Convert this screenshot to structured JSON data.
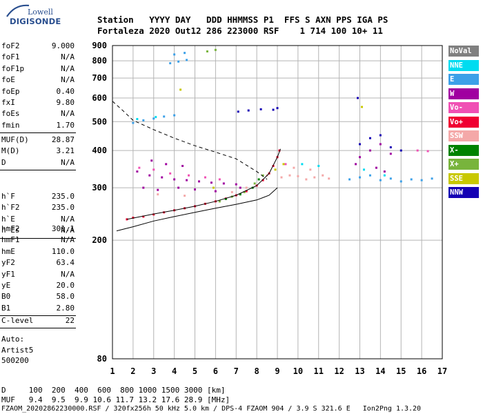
{
  "logo": {
    "line1": "Lowell",
    "line2": "DIGISONDE",
    "icon": "antenna-arc-icon"
  },
  "header": {
    "labels_line": "Station   YYYY DAY   DDD HHMMSS P1  FFS S AXN PPS IGA PS",
    "values_line": "Fortaleza 2020 Out12 286 223000 RSF    1 714 100 10+ 11"
  },
  "params": {
    "group1": [
      {
        "label": "foF2",
        "value": "9.000"
      },
      {
        "label": "foF1",
        "value": "N/A"
      },
      {
        "label": "foF1p",
        "value": "N/A"
      },
      {
        "label": "foE",
        "value": "N/A"
      },
      {
        "label": "foEp",
        "value": "0.40"
      },
      {
        "label": "fxI",
        "value": "9.80"
      },
      {
        "label": "foEs",
        "value": "N/A"
      },
      {
        "label": "fmin",
        "value": "1.70"
      }
    ],
    "group2": [
      {
        "label": "MUF(D)",
        "value": "28.87"
      },
      {
        "label": "M(D)",
        "value": "3.21"
      },
      {
        "label": "D",
        "value": "N/A"
      }
    ],
    "group3": [
      {
        "label": "h`F",
        "value": "235.0"
      },
      {
        "label": "h`F2",
        "value": "235.0"
      },
      {
        "label": "h`E",
        "value": "N/A"
      },
      {
        "label": "h`Es",
        "value": "N/A"
      }
    ],
    "group4": [
      {
        "label": "hmF2",
        "value": "301.1"
      },
      {
        "label": "hmF1",
        "value": "N/A"
      },
      {
        "label": "hmE",
        "value": "110.0"
      },
      {
        "label": "yF2",
        "value": "63.4"
      },
      {
        "label": "yF1",
        "value": "N/A"
      },
      {
        "label": "yE",
        "value": "20.0"
      },
      {
        "label": "B0",
        "value": "58.0"
      },
      {
        "label": "B1",
        "value": "2.80"
      }
    ],
    "group5": [
      {
        "label": "C-level",
        "value": "22"
      }
    ]
  },
  "auto": {
    "line1": "Auto:",
    "line2": "Artist5",
    "line3": "500200"
  },
  "footer": {
    "d_row": "D     100  200  400  600  800 1000 1500 3000 [km]",
    "muf_row": "MUF   9.4  9.5  9.9 10.6 11.7 13.2 17.6 28.9 [MHz]",
    "file_row": "FZAOM_20202862230000.RSF / 320fx256h 50 kHz 5.0 km / DPS-4 FZAOM 904 / 3.9 S 321.6 E   Ion2Png 1.3.20"
  },
  "legend": [
    {
      "label": "NoVal",
      "color": "#808080"
    },
    {
      "label": "NNE",
      "color": "#00dcf0"
    },
    {
      "label": "E",
      "color": "#3ca0e8"
    },
    {
      "label": "W",
      "color": "#a000a0"
    },
    {
      "label": "Vo-",
      "color": "#f050b4"
    },
    {
      "label": "Vo+",
      "color": "#f00032"
    },
    {
      "label": "SSW",
      "color": "#f4a8a8"
    },
    {
      "label": "X-",
      "color": "#008200"
    },
    {
      "label": "X+",
      "color": "#78b43c"
    },
    {
      "label": "SSE",
      "color": "#c8c800"
    },
    {
      "label": "NNW",
      "color": "#1400b4"
    }
  ],
  "chart_data": {
    "type": "scatter",
    "title": "",
    "xlabel": "",
    "ylabel": "",
    "xlim": [
      1,
      17
    ],
    "ylim": [
      80,
      900
    ],
    "y_scale": "log",
    "x_ticks": [
      1,
      2,
      3,
      4,
      5,
      6,
      7,
      8,
      9,
      10,
      11,
      12,
      13,
      14,
      15,
      16,
      17
    ],
    "y_ticks": [
      80,
      200,
      300,
      400,
      500,
      600,
      700,
      800,
      900
    ],
    "grid": true,
    "legend_position": "right",
    "series": [
      {
        "name": "Vo+",
        "color": "#f00032",
        "points": [
          [
            1.7,
            235
          ],
          [
            2,
            238
          ],
          [
            2.5,
            240
          ],
          [
            3,
            244
          ],
          [
            3.5,
            248
          ],
          [
            4,
            252
          ],
          [
            4.5,
            256
          ],
          [
            5,
            260
          ],
          [
            5.5,
            265
          ],
          [
            6,
            270
          ],
          [
            6.5,
            276
          ],
          [
            7,
            283
          ],
          [
            7.5,
            292
          ],
          [
            8,
            305
          ],
          [
            8.3,
            318
          ],
          [
            8.6,
            335
          ],
          [
            8.8,
            355
          ],
          [
            9.0,
            380
          ],
          [
            9.1,
            400
          ]
        ]
      },
      {
        "name": "W",
        "color": "#a000a0",
        "points": [
          [
            2.2,
            340
          ],
          [
            2.8,
            330
          ],
          [
            3.4,
            325
          ],
          [
            4,
            320
          ],
          [
            4.6,
            318
          ],
          [
            5.2,
            315
          ],
          [
            5.8,
            312
          ],
          [
            6.4,
            310
          ],
          [
            7,
            308
          ],
          [
            2.5,
            300
          ],
          [
            3.2,
            295
          ],
          [
            4.2,
            300
          ],
          [
            5,
            296
          ],
          [
            6,
            292
          ],
          [
            7.2,
            300
          ],
          [
            13,
            380
          ],
          [
            13.5,
            400
          ],
          [
            14,
            420
          ],
          [
            14.5,
            390
          ],
          [
            12.8,
            360
          ],
          [
            13.8,
            350
          ],
          [
            14.2,
            340
          ],
          [
            2.9,
            370
          ],
          [
            3.6,
            360
          ],
          [
            4.4,
            355
          ]
        ]
      },
      {
        "name": "SSW",
        "color": "#f4a8a8",
        "points": [
          [
            8.5,
            330
          ],
          [
            9.2,
            325
          ],
          [
            9.6,
            330
          ],
          [
            10,
            328
          ],
          [
            10.4,
            320
          ],
          [
            10.8,
            325
          ],
          [
            11.2,
            330
          ],
          [
            11.5,
            322
          ],
          [
            7.5,
            300
          ],
          [
            6.8,
            290
          ],
          [
            3.2,
            285
          ],
          [
            4.5,
            282
          ],
          [
            9.8,
            350
          ],
          [
            10.6,
            345
          ]
        ]
      },
      {
        "name": "E",
        "color": "#3ca0e8",
        "points": [
          [
            2,
            495
          ],
          [
            2.5,
            505
          ],
          [
            3,
            512
          ],
          [
            3.5,
            520
          ],
          [
            4,
            525
          ],
          [
            3.8,
            785
          ],
          [
            4.2,
            795
          ],
          [
            4.6,
            805
          ],
          [
            4.0,
            840
          ],
          [
            4.5,
            850
          ],
          [
            12.5,
            320
          ],
          [
            13,
            325
          ],
          [
            13.5,
            330
          ],
          [
            14,
            318
          ],
          [
            14.5,
            322
          ],
          [
            15,
            315
          ],
          [
            15.5,
            320
          ],
          [
            16,
            318
          ],
          [
            16.5,
            322
          ]
        ]
      },
      {
        "name": "NNE",
        "color": "#00dcf0",
        "points": [
          [
            2.2,
            510
          ],
          [
            3.1,
            518
          ],
          [
            10.2,
            360
          ],
          [
            11,
            355
          ],
          [
            13.2,
            345
          ],
          [
            14.2,
            330
          ]
        ]
      },
      {
        "name": "NNW",
        "color": "#1400b4",
        "points": [
          [
            7.1,
            540
          ],
          [
            7.6,
            545
          ],
          [
            8.2,
            550
          ],
          [
            8.8,
            548
          ],
          [
            9.0,
            555
          ],
          [
            13,
            420
          ],
          [
            13.5,
            440
          ],
          [
            14,
            450
          ],
          [
            14.5,
            410
          ],
          [
            15,
            400
          ],
          [
            12.9,
            600
          ]
        ]
      },
      {
        "name": "X+",
        "color": "#78b43c",
        "points": [
          [
            6.2,
            270
          ],
          [
            6.8,
            280
          ],
          [
            7.4,
            290
          ],
          [
            7.9,
            310
          ],
          [
            8.3,
            330
          ],
          [
            5.6,
            860
          ],
          [
            6.0,
            870
          ]
        ]
      },
      {
        "name": "X-",
        "color": "#008200",
        "points": [
          [
            6.5,
            275
          ],
          [
            7.2,
            285
          ],
          [
            7.8,
            300
          ],
          [
            8.1,
            320
          ]
        ]
      },
      {
        "name": "SSE",
        "color": "#c8c800",
        "points": [
          [
            8.9,
            345
          ],
          [
            9.3,
            360
          ],
          [
            5.9,
            300
          ],
          [
            13.1,
            560
          ],
          [
            4.3,
            640
          ]
        ]
      },
      {
        "name": "Vo-",
        "color": "#f050b4",
        "points": [
          [
            2.3,
            350
          ],
          [
            3.0,
            345
          ],
          [
            3.8,
            335
          ],
          [
            4.7,
            330
          ],
          [
            5.5,
            325
          ],
          [
            6.2,
            320
          ],
          [
            9.4,
            360
          ],
          [
            15.8,
            400
          ],
          [
            16.3,
            398
          ]
        ]
      }
    ],
    "curves": [
      {
        "name": "virtual-height-trace",
        "style": "dashed",
        "points": [
          [
            1,
            585
          ],
          [
            1.5,
            545
          ],
          [
            2,
            505
          ],
          [
            3,
            470
          ],
          [
            4,
            440
          ],
          [
            5,
            415
          ],
          [
            6,
            395
          ],
          [
            7,
            375
          ],
          [
            8,
            340
          ],
          [
            8.5,
            320
          ]
        ]
      },
      {
        "name": "true-height-profile",
        "style": "solid",
        "points": [
          [
            1.2,
            215
          ],
          [
            2,
            222
          ],
          [
            3,
            232
          ],
          [
            4,
            240
          ],
          [
            5,
            248
          ],
          [
            6,
            256
          ],
          [
            7,
            264
          ],
          [
            8,
            273
          ],
          [
            8.6,
            283
          ],
          [
            9.0,
            300
          ]
        ]
      },
      {
        "name": "model-trace",
        "style": "solid",
        "points": [
          [
            1.7,
            235
          ],
          [
            3,
            245
          ],
          [
            4,
            252
          ],
          [
            5,
            260
          ],
          [
            6,
            270
          ],
          [
            7,
            283
          ],
          [
            8,
            305
          ],
          [
            8.6,
            335
          ],
          [
            9.0,
            380
          ],
          [
            9.15,
            405
          ]
        ]
      }
    ]
  }
}
